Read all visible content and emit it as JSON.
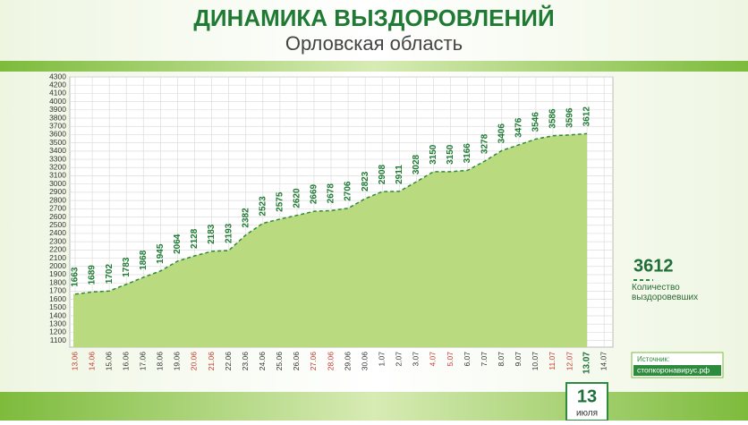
{
  "chart_data": {
    "type": "area",
    "title": "ДИНАМИКА ВЫЗДОРОВЛЕНИЙ",
    "subtitle": "Орловская область",
    "categories": [
      "13.06",
      "14.06",
      "15.06",
      "16.06",
      "17.06",
      "18.06",
      "19.06",
      "20.06",
      "21.06",
      "22.06",
      "23.06",
      "24.06",
      "25.06",
      "26.06",
      "27.06",
      "28.06",
      "29.06",
      "30.06",
      "1.07",
      "2.07",
      "3.07",
      "4.07",
      "5.07",
      "6.07",
      "7.07",
      "8.07",
      "9.07",
      "10.07",
      "11.07",
      "12.07",
      "13.07",
      "14.07"
    ],
    "category_colors": [
      "#c0392b",
      "#c0392b",
      "#333333",
      "#333333",
      "#333333",
      "#333333",
      "#333333",
      "#c0392b",
      "#c0392b",
      "#333333",
      "#333333",
      "#333333",
      "#333333",
      "#333333",
      "#c0392b",
      "#c0392b",
      "#333333",
      "#333333",
      "#333333",
      "#333333",
      "#333333",
      "#c0392b",
      "#c0392b",
      "#333333",
      "#333333",
      "#333333",
      "#333333",
      "#333333",
      "#c0392b",
      "#c0392b",
      "#1f6f3a",
      "#333333"
    ],
    "series": [
      {
        "name": "Количество выздоровевших",
        "color": "#2e8b3e",
        "values": [
          1663,
          1689,
          1702,
          1783,
          1868,
          1945,
          2064,
          2128,
          2183,
          2193,
          2382,
          2523,
          2575,
          2620,
          2669,
          2678,
          2706,
          2823,
          2908,
          2911,
          3028,
          3150,
          3150,
          3166,
          3278,
          3406,
          3476,
          3546,
          3586,
          3596,
          3612,
          null
        ]
      }
    ],
    "fill_color": "#b9da7e",
    "ylim": [
      1020,
      4300
    ],
    "yticks": [
      1100,
      1200,
      1300,
      1400,
      1500,
      1600,
      1700,
      1800,
      1900,
      2000,
      2100,
      2200,
      2300,
      2400,
      2500,
      2600,
      2700,
      2800,
      2900,
      3000,
      3100,
      3200,
      3300,
      3400,
      3500,
      3600,
      3700,
      3800,
      3900,
      4000,
      4100,
      4200,
      4300
    ],
    "grid": true,
    "legend_value": 3612,
    "date_badge": {
      "day": "13",
      "month": "июля"
    },
    "source": {
      "label": "Источник:",
      "site": "стопкоронавирус.рф"
    }
  }
}
